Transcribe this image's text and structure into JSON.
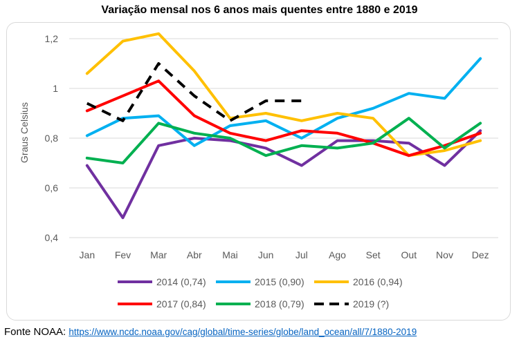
{
  "chart_data": {
    "type": "line",
    "title": "Variação mensal nos 6 anos mais quentes entre 1880 e 2019",
    "ylabel": "Graus Celsius",
    "xlabel": "",
    "categories": [
      "Jan",
      "Fev",
      "Mar",
      "Abr",
      "Mai",
      "Jun",
      "Jul",
      "Ago",
      "Set",
      "Out",
      "Nov",
      "Dez"
    ],
    "ylim": [
      0.4,
      1.3
    ],
    "yticks": [
      "0,4",
      "0,6",
      "0,8",
      "1",
      "1,2"
    ],
    "ytick_values": [
      0.4,
      0.6,
      0.8,
      1.0,
      1.2
    ],
    "grid": true,
    "legend_position": "bottom",
    "series": [
      {
        "name": "2014 (0,74)",
        "color": "#7030a0",
        "dashed": false,
        "values": [
          0.69,
          0.48,
          0.77,
          0.8,
          0.79,
          0.76,
          0.69,
          0.79,
          0.79,
          0.78,
          0.69,
          0.83
        ]
      },
      {
        "name": "2015 (0,90)",
        "color": "#00b0f0",
        "dashed": false,
        "values": [
          0.81,
          0.88,
          0.89,
          0.77,
          0.85,
          0.87,
          0.8,
          0.88,
          0.92,
          0.98,
          0.96,
          1.12
        ]
      },
      {
        "name": "2016 (0,94)",
        "color": "#ffc000",
        "dashed": false,
        "values": [
          1.06,
          1.19,
          1.22,
          1.07,
          0.88,
          0.9,
          0.87,
          0.9,
          0.88,
          0.73,
          0.75,
          0.79
        ]
      },
      {
        "name": "2017 (0,84)",
        "color": "#ff0000",
        "dashed": false,
        "values": [
          0.91,
          0.97,
          1.03,
          0.89,
          0.82,
          0.79,
          0.83,
          0.82,
          0.78,
          0.73,
          0.77,
          0.82
        ]
      },
      {
        "name": "2018 (0,79)",
        "color": "#00b050",
        "dashed": false,
        "values": [
          0.72,
          0.7,
          0.86,
          0.82,
          0.8,
          0.73,
          0.77,
          0.76,
          0.78,
          0.88,
          0.76,
          0.86
        ]
      },
      {
        "name": "2019 (?)",
        "color": "#000000",
        "dashed": true,
        "values": [
          0.94,
          0.87,
          1.1,
          0.97,
          0.87,
          0.95,
          0.95,
          null,
          null,
          null,
          null,
          null
        ]
      }
    ]
  },
  "source": {
    "label": "Fonte NOAA:",
    "link_text": "https://www.ncdc.noaa.gov/cag/global/time-series/globe/land_ocean/all/7/1880-2019"
  }
}
